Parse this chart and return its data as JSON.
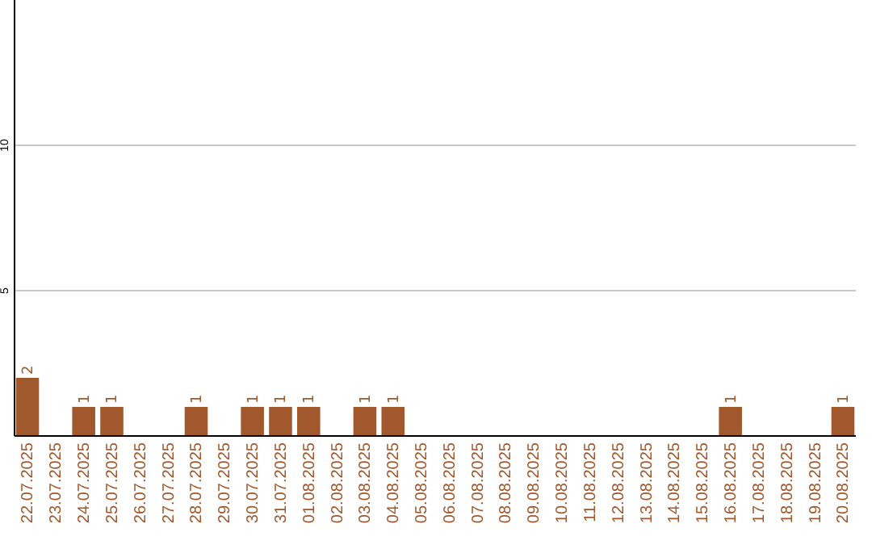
{
  "chart_data": {
    "type": "bar",
    "categories": [
      "22.07.2025",
      "23.07.2025",
      "24.07.2025",
      "25.07.2025",
      "26.07.2025",
      "27.07.2025",
      "28.07.2025",
      "29.07.2025",
      "30.07.2025",
      "31.07.2025",
      "01.08.2025",
      "02.08.2025",
      "03.08.2025",
      "04.08.2025",
      "05.08.2025",
      "06.08.2025",
      "07.08.2025",
      "08.08.2025",
      "09.08.2025",
      "10.08.2025",
      "11.08.2025",
      "12.08.2025",
      "13.08.2025",
      "14.08.2025",
      "15.08.2025",
      "16.08.2025",
      "17.08.2025",
      "18.08.2025",
      "19.08.2025",
      "20.08.2025"
    ],
    "values": [
      2,
      0,
      1,
      1,
      0,
      0,
      1,
      0,
      1,
      1,
      1,
      0,
      1,
      1,
      0,
      0,
      0,
      0,
      0,
      0,
      0,
      0,
      0,
      0,
      0,
      1,
      0,
      0,
      0,
      1
    ],
    "value_labels": [
      "2",
      null,
      "1",
      "1",
      null,
      null,
      "1",
      null,
      "1",
      "1",
      "1",
      null,
      "1",
      "1",
      null,
      null,
      null,
      null,
      null,
      null,
      null,
      null,
      null,
      null,
      null,
      "1",
      null,
      null,
      null,
      "1"
    ],
    "color": "#a0582c",
    "ylim": [
      0,
      15
    ],
    "yticks": [
      5,
      10
    ],
    "grid": "y"
  }
}
